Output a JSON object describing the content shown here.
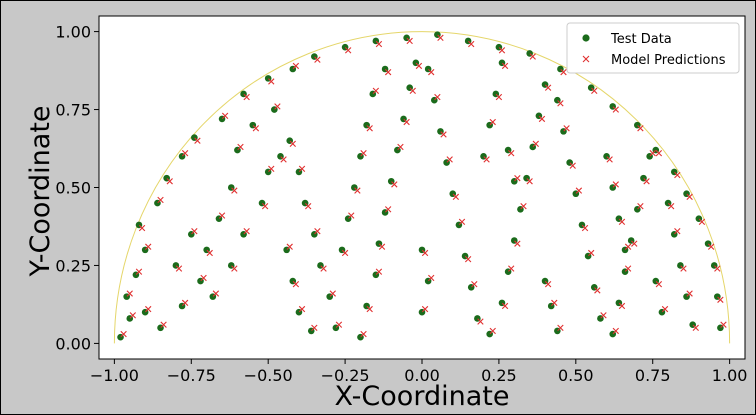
{
  "chart_data": {
    "type": "scatter",
    "title": "",
    "xlabel": "X-Coordinate",
    "ylabel": "Y-Coordinate",
    "xlim": [
      -1.05,
      1.05
    ],
    "ylim": [
      -0.05,
      1.05
    ],
    "x_ticks": [
      "−1.00",
      "−0.75",
      "−0.50",
      "−0.25",
      "0.00",
      "0.25",
      "0.50",
      "0.75",
      "1.00"
    ],
    "y_ticks": [
      "0.00",
      "0.25",
      "0.50",
      "0.75",
      "1.00"
    ],
    "grid": false,
    "legend_position": "top-right",
    "boundary": {
      "shape": "upper unit semicircle",
      "radius": 1.0,
      "color": "#e5d66a"
    },
    "series": [
      {
        "name": "Test Data",
        "marker": "circle",
        "color": "#1b6b1b",
        "points": [
          [
            -0.98,
            0.02
          ],
          [
            -0.95,
            0.08
          ],
          [
            -0.96,
            0.15
          ],
          [
            -0.93,
            0.22
          ],
          [
            -0.9,
            0.3
          ],
          [
            -0.92,
            0.38
          ],
          [
            -0.86,
            0.45
          ],
          [
            -0.83,
            0.53
          ],
          [
            -0.78,
            0.6
          ],
          [
            -0.74,
            0.66
          ],
          [
            -0.65,
            0.72
          ],
          [
            -0.58,
            0.8
          ],
          [
            -0.5,
            0.85
          ],
          [
            -0.42,
            0.88
          ],
          [
            -0.35,
            0.92
          ],
          [
            -0.25,
            0.95
          ],
          [
            -0.15,
            0.97
          ],
          [
            -0.05,
            0.98
          ],
          [
            0.05,
            0.99
          ],
          [
            0.15,
            0.97
          ],
          [
            0.25,
            0.95
          ],
          [
            0.35,
            0.93
          ],
          [
            0.45,
            0.88
          ],
          [
            0.55,
            0.82
          ],
          [
            0.62,
            0.76
          ],
          [
            0.7,
            0.7
          ],
          [
            0.76,
            0.62
          ],
          [
            0.82,
            0.55
          ],
          [
            0.86,
            0.48
          ],
          [
            0.9,
            0.4
          ],
          [
            0.93,
            0.32
          ],
          [
            0.95,
            0.25
          ],
          [
            0.96,
            0.15
          ],
          [
            0.97,
            0.05
          ],
          [
            -0.85,
            0.05
          ],
          [
            -0.78,
            0.12
          ],
          [
            -0.72,
            0.2
          ],
          [
            -0.7,
            0.3
          ],
          [
            -0.66,
            0.4
          ],
          [
            -0.62,
            0.5
          ],
          [
            -0.6,
            0.62
          ],
          [
            -0.55,
            0.7
          ],
          [
            -0.48,
            0.75
          ],
          [
            -0.43,
            0.65
          ],
          [
            -0.4,
            0.55
          ],
          [
            -0.38,
            0.45
          ],
          [
            -0.35,
            0.35
          ],
          [
            -0.33,
            0.25
          ],
          [
            -0.3,
            0.15
          ],
          [
            -0.28,
            0.05
          ],
          [
            -0.2,
            0.02
          ],
          [
            -0.18,
            0.12
          ],
          [
            -0.15,
            0.22
          ],
          [
            -0.14,
            0.32
          ],
          [
            -0.12,
            0.42
          ],
          [
            -0.1,
            0.52
          ],
          [
            -0.08,
            0.62
          ],
          [
            -0.06,
            0.72
          ],
          [
            -0.04,
            0.82
          ],
          [
            -0.02,
            0.9
          ],
          [
            0.02,
            0.88
          ],
          [
            0.04,
            0.78
          ],
          [
            0.06,
            0.68
          ],
          [
            0.08,
            0.58
          ],
          [
            0.1,
            0.48
          ],
          [
            0.12,
            0.38
          ],
          [
            0.14,
            0.28
          ],
          [
            0.16,
            0.18
          ],
          [
            0.18,
            0.08
          ],
          [
            0.22,
            0.03
          ],
          [
            0.26,
            0.13
          ],
          [
            0.28,
            0.23
          ],
          [
            0.3,
            0.33
          ],
          [
            0.32,
            0.43
          ],
          [
            0.34,
            0.53
          ],
          [
            0.36,
            0.63
          ],
          [
            0.38,
            0.73
          ],
          [
            0.4,
            0.83
          ],
          [
            0.44,
            0.78
          ],
          [
            0.46,
            0.68
          ],
          [
            0.48,
            0.58
          ],
          [
            0.5,
            0.48
          ],
          [
            0.52,
            0.38
          ],
          [
            0.54,
            0.28
          ],
          [
            0.56,
            0.18
          ],
          [
            0.58,
            0.08
          ],
          [
            0.62,
            0.03
          ],
          [
            0.64,
            0.13
          ],
          [
            0.66,
            0.23
          ],
          [
            0.68,
            0.33
          ],
          [
            0.7,
            0.43
          ],
          [
            0.72,
            0.53
          ],
          [
            0.74,
            0.6
          ],
          [
            0.8,
            0.45
          ],
          [
            0.82,
            0.35
          ],
          [
            0.84,
            0.25
          ],
          [
            0.86,
            0.15
          ],
          [
            0.88,
            0.06
          ],
          [
            -0.9,
            0.1
          ],
          [
            -0.8,
            0.25
          ],
          [
            -0.75,
            0.35
          ],
          [
            -0.68,
            0.15
          ],
          [
            -0.62,
            0.25
          ],
          [
            -0.58,
            0.35
          ],
          [
            -0.52,
            0.45
          ],
          [
            -0.5,
            0.55
          ],
          [
            -0.46,
            0.6
          ],
          [
            -0.44,
            0.3
          ],
          [
            -0.42,
            0.2
          ],
          [
            -0.4,
            0.1
          ],
          [
            -0.36,
            0.04
          ],
          [
            -0.26,
            0.3
          ],
          [
            -0.24,
            0.4
          ],
          [
            -0.22,
            0.5
          ],
          [
            -0.2,
            0.6
          ],
          [
            -0.18,
            0.7
          ],
          [
            -0.16,
            0.8
          ],
          [
            -0.12,
            0.88
          ],
          [
            0.0,
            0.3
          ],
          [
            0.02,
            0.2
          ],
          [
            0.0,
            0.1
          ],
          [
            0.2,
            0.6
          ],
          [
            0.22,
            0.7
          ],
          [
            0.24,
            0.8
          ],
          [
            0.26,
            0.9
          ],
          [
            0.28,
            0.62
          ],
          [
            0.3,
            0.52
          ],
          [
            0.6,
            0.6
          ],
          [
            0.62,
            0.5
          ],
          [
            0.64,
            0.4
          ],
          [
            0.66,
            0.3
          ],
          [
            0.4,
            0.2
          ],
          [
            0.42,
            0.12
          ],
          [
            0.44,
            0.04
          ],
          [
            0.78,
            0.1
          ],
          [
            0.76,
            0.2
          ]
        ]
      },
      {
        "name": "Model Predictions",
        "marker": "x",
        "color": "#e03030",
        "points": [
          [
            -0.97,
            0.03
          ],
          [
            -0.94,
            0.09
          ],
          [
            -0.95,
            0.16
          ],
          [
            -0.92,
            0.23
          ],
          [
            -0.89,
            0.31
          ],
          [
            -0.91,
            0.37
          ],
          [
            -0.85,
            0.46
          ],
          [
            -0.82,
            0.52
          ],
          [
            -0.77,
            0.61
          ],
          [
            -0.73,
            0.65
          ],
          [
            -0.64,
            0.73
          ],
          [
            -0.57,
            0.79
          ],
          [
            -0.49,
            0.84
          ],
          [
            -0.41,
            0.89
          ],
          [
            -0.34,
            0.91
          ],
          [
            -0.24,
            0.94
          ],
          [
            -0.14,
            0.96
          ],
          [
            -0.04,
            0.97
          ],
          [
            0.06,
            0.98
          ],
          [
            0.16,
            0.96
          ],
          [
            0.26,
            0.94
          ],
          [
            0.36,
            0.92
          ],
          [
            0.46,
            0.87
          ],
          [
            0.56,
            0.81
          ],
          [
            0.63,
            0.75
          ],
          [
            0.71,
            0.69
          ],
          [
            0.77,
            0.61
          ],
          [
            0.83,
            0.54
          ],
          [
            0.87,
            0.47
          ],
          [
            0.91,
            0.39
          ],
          [
            0.94,
            0.31
          ],
          [
            0.96,
            0.24
          ],
          [
            0.97,
            0.14
          ],
          [
            0.98,
            0.06
          ],
          [
            -0.84,
            0.06
          ],
          [
            -0.77,
            0.13
          ],
          [
            -0.71,
            0.21
          ],
          [
            -0.69,
            0.29
          ],
          [
            -0.65,
            0.41
          ],
          [
            -0.61,
            0.49
          ],
          [
            -0.59,
            0.63
          ],
          [
            -0.54,
            0.69
          ],
          [
            -0.47,
            0.76
          ],
          [
            -0.42,
            0.64
          ],
          [
            -0.39,
            0.56
          ],
          [
            -0.37,
            0.44
          ],
          [
            -0.34,
            0.36
          ],
          [
            -0.32,
            0.24
          ],
          [
            -0.29,
            0.16
          ],
          [
            -0.27,
            0.06
          ],
          [
            -0.19,
            0.03
          ],
          [
            -0.17,
            0.11
          ],
          [
            -0.14,
            0.23
          ],
          [
            -0.13,
            0.31
          ],
          [
            -0.11,
            0.43
          ],
          [
            -0.09,
            0.51
          ],
          [
            -0.07,
            0.63
          ],
          [
            -0.05,
            0.71
          ],
          [
            -0.03,
            0.81
          ],
          [
            -0.01,
            0.89
          ],
          [
            0.03,
            0.87
          ],
          [
            0.05,
            0.79
          ],
          [
            0.07,
            0.67
          ],
          [
            0.09,
            0.59
          ],
          [
            0.11,
            0.47
          ],
          [
            0.13,
            0.39
          ],
          [
            0.15,
            0.27
          ],
          [
            0.17,
            0.19
          ],
          [
            0.19,
            0.07
          ],
          [
            0.23,
            0.04
          ],
          [
            0.27,
            0.12
          ],
          [
            0.29,
            0.24
          ],
          [
            0.31,
            0.32
          ],
          [
            0.33,
            0.44
          ],
          [
            0.35,
            0.52
          ],
          [
            0.37,
            0.64
          ],
          [
            0.39,
            0.72
          ],
          [
            0.41,
            0.82
          ],
          [
            0.45,
            0.77
          ],
          [
            0.47,
            0.69
          ],
          [
            0.49,
            0.57
          ],
          [
            0.51,
            0.49
          ],
          [
            0.53,
            0.37
          ],
          [
            0.55,
            0.29
          ],
          [
            0.57,
            0.17
          ],
          [
            0.59,
            0.09
          ],
          [
            0.63,
            0.04
          ],
          [
            0.65,
            0.12
          ],
          [
            0.67,
            0.24
          ],
          [
            0.69,
            0.32
          ],
          [
            0.71,
            0.44
          ],
          [
            0.73,
            0.52
          ],
          [
            0.75,
            0.61
          ],
          [
            0.81,
            0.44
          ],
          [
            0.83,
            0.36
          ],
          [
            0.85,
            0.24
          ],
          [
            0.87,
            0.16
          ],
          [
            0.89,
            0.05
          ],
          [
            -0.89,
            0.11
          ],
          [
            -0.79,
            0.24
          ],
          [
            -0.74,
            0.36
          ],
          [
            -0.67,
            0.16
          ],
          [
            -0.61,
            0.24
          ],
          [
            -0.57,
            0.36
          ],
          [
            -0.51,
            0.44
          ],
          [
            -0.49,
            0.56
          ],
          [
            -0.45,
            0.59
          ],
          [
            -0.43,
            0.31
          ],
          [
            -0.41,
            0.19
          ],
          [
            -0.39,
            0.11
          ],
          [
            -0.35,
            0.05
          ],
          [
            -0.25,
            0.29
          ],
          [
            -0.23,
            0.41
          ],
          [
            -0.21,
            0.49
          ],
          [
            -0.19,
            0.61
          ],
          [
            -0.17,
            0.69
          ],
          [
            -0.15,
            0.81
          ],
          [
            -0.11,
            0.87
          ],
          [
            0.01,
            0.29
          ],
          [
            0.03,
            0.21
          ],
          [
            0.01,
            0.11
          ],
          [
            0.21,
            0.59
          ],
          [
            0.23,
            0.71
          ],
          [
            0.25,
            0.79
          ],
          [
            0.27,
            0.89
          ],
          [
            0.29,
            0.61
          ],
          [
            0.31,
            0.53
          ],
          [
            0.61,
            0.59
          ],
          [
            0.63,
            0.51
          ],
          [
            0.65,
            0.39
          ],
          [
            0.67,
            0.31
          ],
          [
            0.41,
            0.19
          ],
          [
            0.43,
            0.13
          ],
          [
            0.45,
            0.05
          ],
          [
            0.79,
            0.11
          ],
          [
            0.77,
            0.19
          ]
        ]
      }
    ]
  }
}
